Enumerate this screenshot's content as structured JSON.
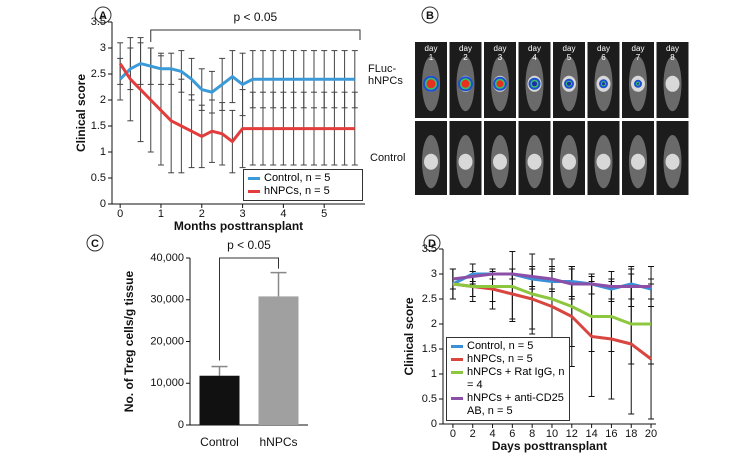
{
  "chart_data": [
    {
      "type": "line",
      "label": "A",
      "annotation": "p < 0.05",
      "xlabel": "Months posttransplant",
      "ylabel": "Clinical score",
      "x": [
        0,
        0.25,
        0.5,
        0.75,
        1,
        1.25,
        1.5,
        1.75,
        2,
        2.25,
        2.5,
        2.75,
        3,
        3.25,
        3.5,
        3.75,
        4,
        4.25,
        4.5,
        4.75,
        5,
        5.25,
        5.5,
        5.75
      ],
      "series": [
        {
          "name": "Control, n = 5",
          "color": "#3b9ad8",
          "values": [
            2.4,
            2.6,
            2.7,
            2.65,
            2.6,
            2.6,
            2.55,
            2.4,
            2.2,
            2.15,
            2.3,
            2.45,
            2.3,
            2.4,
            2.4,
            2.4,
            2.4,
            2.4,
            2.4,
            2.4,
            2.4,
            2.4,
            2.4,
            2.4
          ],
          "errors": [
            0.4,
            0.4,
            0.4,
            0.35,
            0.3,
            0.3,
            0.4,
            0.4,
            0.4,
            0.4,
            0.5,
            0.5,
            0.6,
            0.55,
            0.55,
            0.55,
            0.55,
            0.55,
            0.55,
            0.55,
            0.55,
            0.55,
            0.55,
            0.55
          ]
        },
        {
          "name": "hNPCs, n = 5",
          "color": "#e23c3c",
          "values": [
            2.7,
            2.4,
            2.2,
            2.0,
            1.8,
            1.6,
            1.5,
            1.4,
            1.3,
            1.4,
            1.35,
            1.2,
            1.45,
            1.45,
            1.45,
            1.45,
            1.45,
            1.45,
            1.45,
            1.45,
            1.45,
            1.45,
            1.45,
            1.45
          ],
          "errors": [
            0.4,
            0.8,
            1.0,
            1.0,
            1.05,
            1.0,
            0.9,
            0.7,
            0.6,
            0.6,
            0.6,
            0.6,
            0.75,
            0.7,
            0.7,
            0.7,
            0.7,
            0.7,
            0.7,
            0.7,
            0.7,
            0.7,
            0.7,
            0.7
          ]
        }
      ],
      "error_color": "#444",
      "xlim": [
        -0.2,
        6
      ],
      "ylim": [
        0,
        3.5
      ],
      "xticks": [
        0,
        1,
        2,
        3,
        4,
        5
      ],
      "yticks": [
        0,
        0.5,
        1,
        1.5,
        2,
        2.5,
        3,
        3.5
      ],
      "legend": "lower right"
    },
    {
      "type": "bar",
      "label": "C",
      "annotation": "p < 0.05",
      "ylabel": "No. of Treg cells/g tissue",
      "categories": [
        "Control",
        "hNPCs"
      ],
      "values": [
        11800,
        30800
      ],
      "errors": [
        2200,
        5700
      ],
      "colors": [
        "#111111",
        "#a0a0a0"
      ],
      "error_color": "#888",
      "ylim": [
        0,
        40000
      ],
      "yticks": [
        0,
        {
          "value": 10000,
          "label": "10,000"
        },
        {
          "value": 20000,
          "label": "20,000"
        },
        {
          "value": 30000,
          "label": "30,000"
        },
        {
          "value": 40000,
          "label": "40,000"
        }
      ]
    },
    {
      "type": "line",
      "label": "D",
      "xlabel": "Days posttransplant",
      "ylabel": "Clinical score",
      "x": [
        0,
        2,
        4,
        6,
        8,
        10,
        12,
        14,
        16,
        18,
        20
      ],
      "series": [
        {
          "name": "Control, n = 5",
          "color": "#3b8fd6",
          "values": [
            2.8,
            3.0,
            3.0,
            3.0,
            2.9,
            2.85,
            2.85,
            2.8,
            2.7,
            2.8,
            2.7
          ],
          "errors": [
            0.3,
            0.2,
            0.1,
            0.1,
            0.2,
            0.2,
            0.3,
            0.2,
            0.2,
            0.3,
            0.2
          ]
        },
        {
          "name": "hNPCs, n = 5",
          "color": "#d9453f",
          "values": [
            2.8,
            2.75,
            2.7,
            2.6,
            2.5,
            2.35,
            2.15,
            1.75,
            1.7,
            1.6,
            1.3
          ],
          "errors": [
            0.3,
            0.3,
            0.4,
            0.5,
            0.6,
            0.8,
            1.0,
            1.2,
            1.2,
            1.4,
            1.2
          ]
        },
        {
          "name": "hNPCs + Rat IgG, n = 4",
          "color": "#8dc63f",
          "values": [
            2.8,
            2.75,
            2.75,
            2.75,
            2.6,
            2.5,
            2.35,
            2.15,
            2.15,
            2.0,
            2.0
          ],
          "errors": [
            0.3,
            0.2,
            0.3,
            0.7,
            0.8,
            0.8,
            0.8,
            0.7,
            0.7,
            0.8,
            0.8
          ]
        },
        {
          "name": "hNPCs + anti-CD25 AB, n = 5",
          "color": "#8b4fa8",
          "values": [
            2.9,
            2.95,
            3.0,
            3.0,
            2.95,
            2.9,
            2.8,
            2.8,
            2.75,
            2.75,
            2.75
          ],
          "errors": [
            0.2,
            0.1,
            0.1,
            0.1,
            0.2,
            0.2,
            0.3,
            0.2,
            0.3,
            0.4,
            0.4
          ]
        }
      ],
      "error_color": "#111",
      "xlim": [
        -1,
        20.5
      ],
      "ylim": [
        0,
        3.5
      ],
      "xticks": [
        0,
        2,
        4,
        6,
        8,
        10,
        12,
        14,
        16,
        18,
        20
      ],
      "yticks": [
        0,
        0.5,
        1,
        1.5,
        2,
        2.5,
        3,
        3.5
      ],
      "legend": "lower left"
    }
  ],
  "imaging": {
    "label": "B",
    "day_word": "day",
    "days": [
      "1",
      "2",
      "3",
      "4",
      "5",
      "6",
      "7",
      "8"
    ],
    "rows": [
      "FLuc-hNPCs",
      "Control"
    ]
  }
}
